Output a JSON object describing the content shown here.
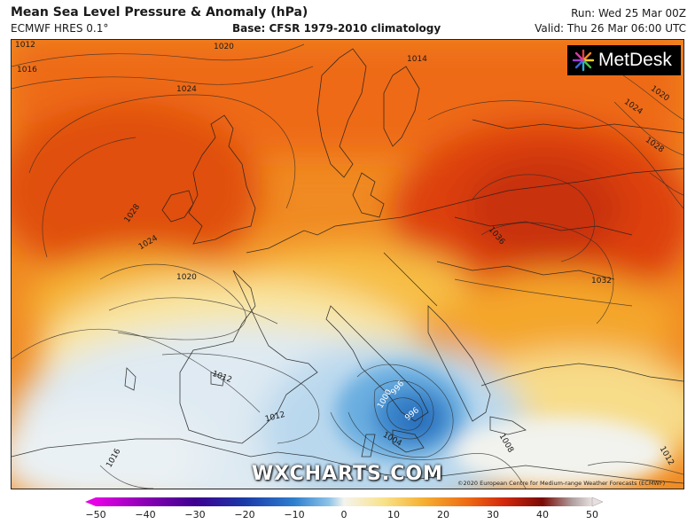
{
  "header": {
    "title": "Mean Sea Level Pressure & Anomaly (hPa)",
    "model": "ECMWF HRES 0.1°",
    "base": "Base: CFSR 1979-2010 climatology",
    "run": "Run: Wed 25 Mar 00Z",
    "valid": "Valid: Thu 26 Mar 06:00 UTC"
  },
  "logo": {
    "text": "MetDesk"
  },
  "watermark": "WXCHARTS.COM",
  "copyright": "©2020 European Centre for Medium-range Weather Forecasts (ECMWF)",
  "contour_labels": [
    "1012",
    "1016",
    "1020",
    "1024",
    "1028",
    "1014",
    "1020",
    "1024",
    "1028",
    "1028",
    "1024",
    "1020",
    "1036",
    "1032",
    "1012",
    "1012",
    "1000",
    "996",
    "996",
    "1004",
    "1008",
    "1016",
    "1012"
  ],
  "colorbar": {
    "ticks": [
      "−50",
      "−40",
      "−30",
      "−20",
      "−10",
      "0",
      "10",
      "20",
      "30",
      "40",
      "50"
    ],
    "min": -50,
    "max": 50,
    "colors": [
      "#e600e6",
      "#8a00b4",
      "#3d0090",
      "#1a3aa8",
      "#2e7fcf",
      "#8ec3e8",
      "#f4f4ee",
      "#f9e28a",
      "#f5b031",
      "#ee6a12",
      "#d42a0c",
      "#7a0a04",
      "#b0a0a0",
      "#e8e0e0"
    ]
  }
}
